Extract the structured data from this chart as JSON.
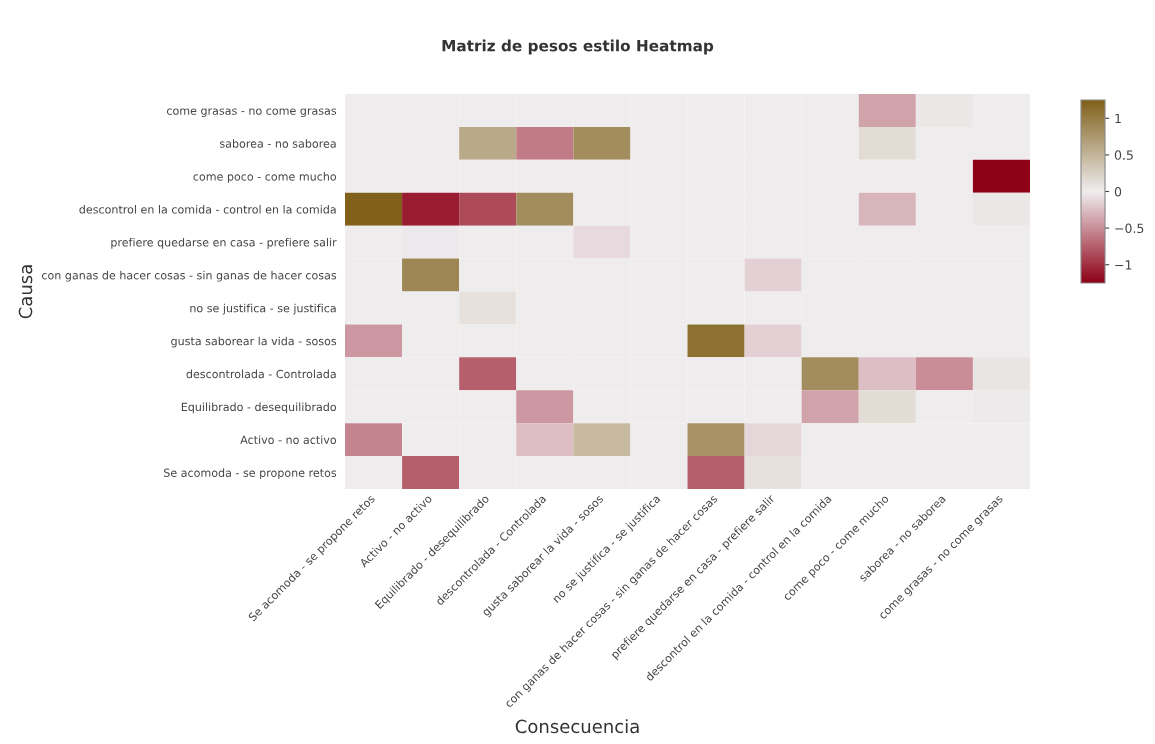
{
  "chart_data": {
    "type": "heatmap",
    "title": "Matriz de pesos estilo Heatmap",
    "xlabel": "Consecuencia",
    "ylabel": "Causa",
    "categories": [
      "Se acomoda - se propone retos",
      "Activo - no activo",
      "Equilibrado - desequilibrado",
      "descontrolada - Controlada",
      "gusta saborear la vida - sosos",
      "no se justifica - se justifica",
      "con ganas de hacer cosas - sin ganas de hacer cosas",
      "prefiere quedarse en casa - prefiere salir",
      "descontrol en la comida - control en la comida",
      "come poco - come mucho",
      "saborea - no saborea",
      "come grasas - no come grasas"
    ],
    "y_categories": [
      "come grasas - no come grasas",
      "saborea - no saborea",
      "come poco - come mucho",
      "descontrol en la comida - control en la comida",
      "prefiere quedarse en casa - prefiere salir",
      "con ganas de hacer cosas - sin ganas de hacer cosas",
      "no se justifica - se justifica",
      "gusta saborear la vida - sosos",
      "descontrolada - Controlada",
      "Equilibrado - desequilibrado",
      "Activo - no activo",
      "Se acomoda - se propone retos"
    ],
    "cells": [
      [
        0,
        0,
        0,
        0,
        0,
        0,
        0,
        0,
        0,
        -0.4,
        0.05,
        0
      ],
      [
        0,
        0,
        0.6,
        -0.6,
        0.85,
        0,
        0,
        0,
        0,
        0.15,
        0,
        0
      ],
      [
        0,
        0,
        0,
        0,
        0,
        0,
        0,
        0,
        0,
        0,
        0,
        -1.25
      ],
      [
        1.25,
        -1.1,
        -0.85,
        0.85,
        0,
        0,
        0,
        0,
        0,
        -0.3,
        0,
        0.05
      ],
      [
        0,
        -0.02,
        0,
        0,
        -0.1,
        0,
        0,
        0,
        0,
        0,
        0,
        0
      ],
      [
        0,
        0.9,
        0,
        0,
        0,
        0,
        0,
        -0.15,
        0,
        0,
        0,
        0
      ],
      [
        0,
        0,
        0.1,
        0,
        0,
        0,
        0,
        0,
        0,
        0,
        0,
        0
      ],
      [
        -0.45,
        0,
        0,
        0,
        0,
        0,
        1.1,
        -0.15,
        0,
        0,
        0,
        0
      ],
      [
        0,
        0,
        -0.75,
        0,
        0,
        0,
        0,
        0,
        0.85,
        -0.25,
        -0.5,
        0.07
      ],
      [
        0,
        0,
        0,
        -0.45,
        0,
        0,
        0,
        0,
        -0.4,
        0.15,
        0,
        0.02
      ],
      [
        -0.55,
        0,
        0,
        -0.25,
        0.45,
        0,
        0.8,
        -0.12,
        0,
        0,
        0,
        0
      ],
      [
        0,
        -0.75,
        0,
        0,
        0,
        0,
        -0.75,
        0.1,
        0,
        0,
        0,
        0
      ]
    ],
    "colors": [
      "#8e0016",
      "#efedef",
      "#80601a"
    ],
    "clim": [
      -1.25,
      1.25
    ],
    "cticks": [
      {
        "value": -1,
        "label": "−1"
      },
      {
        "value": -0.5,
        "label": "−0.5"
      },
      0,
      0.5,
      1
    ]
  }
}
